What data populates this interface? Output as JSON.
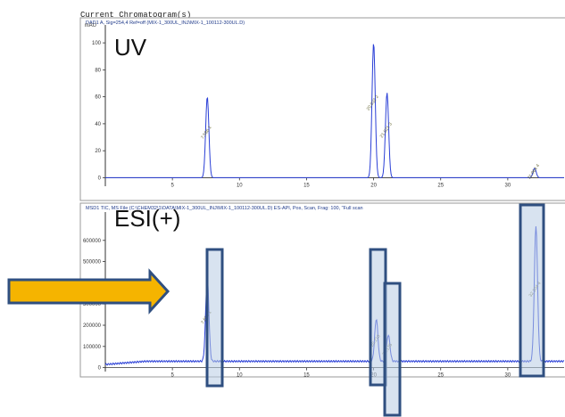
{
  "window_title": "Current Chromatogram(s)",
  "chart_data": [
    {
      "type": "line",
      "header": "DAD1 A, Sig=254,4 Ref=off (MIX-1_300UL_INJ\\MIX-1_100112-300UL.D)",
      "overlay_label": "UV",
      "ylabel": "mAU",
      "xlim": [
        0,
        34.2
      ],
      "ylim": [
        -5,
        108
      ],
      "y_ticks": [
        0,
        20,
        40,
        60,
        80,
        100
      ],
      "x_ticks": [
        5,
        10,
        15,
        20,
        25,
        30
      ],
      "grid": false,
      "baseline": 0,
      "peaks": [
        {
          "rt": 7.6,
          "height": 60,
          "label": "7.586 1"
        },
        {
          "rt": 20.0,
          "height": 100,
          "label": "20.032 2"
        },
        {
          "rt": 21.0,
          "height": 63,
          "label": "21.021 3"
        },
        {
          "rt": 32.0,
          "height": 7,
          "label": "31.964 4"
        }
      ]
    },
    {
      "type": "line",
      "header": "MSD1 TIC, MS File (C:\\CHEM32\\1\\DATA\\MIX-1_300UL_INJ\\MIX-1_100112-300UL.D)   ES-API, Pos, Scan, Frag: 100, \"Full scan",
      "overlay_label": "ESI(+)",
      "xlim": [
        0,
        34.2
      ],
      "ylim": [
        -10000,
        700000
      ],
      "y_ticks": [
        0,
        100000,
        200000,
        300000,
        400000,
        500000,
        600000
      ],
      "x_ticks": [
        5,
        10,
        15,
        20,
        25,
        30
      ],
      "grid": false,
      "baseline": 30000,
      "peaks": [
        {
          "rt": 7.6,
          "height": 400000,
          "label": "7.605 1"
        },
        {
          "rt": 20.2,
          "height": 200000,
          "label": "20.216"
        },
        {
          "rt": 21.1,
          "height": 125000,
          "label": "21.136"
        },
        {
          "rt": 32.1,
          "height": 640000,
          "label": "32.104 4"
        }
      ]
    }
  ],
  "highlight_color": "#b8cce4",
  "highlight_border": "#2f4f80",
  "arrow_color": "#f5b400",
  "arrow_border": "#2f4f80",
  "trace_color": "#2a3fd6",
  "axis_color": "#333333"
}
